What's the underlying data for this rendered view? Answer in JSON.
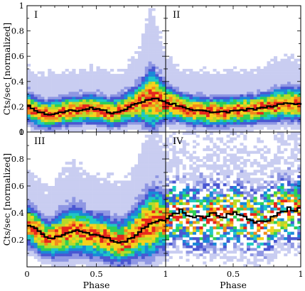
{
  "chart_data": {
    "type": "heatmap",
    "xlabel": "Phase",
    "ylabel": "Cts/sec [normalized]",
    "xlim": [
      0,
      1
    ],
    "ylim": [
      0,
      1
    ],
    "bottom_x_ticks": [
      "0",
      "0.5",
      "1",
      "0.5",
      "1"
    ],
    "y_ticks_top": [
      "0",
      "0.2",
      "0.4",
      "0.6",
      "0.8",
      "1"
    ],
    "y_ticks_bottom": [
      "0.2",
      "0.4",
      "0.6",
      "0.8",
      "1"
    ],
    "grid": false,
    "colors": {
      "scale": [
        "#eef0fb",
        "#c9cdf1",
        "#8f97e3",
        "#4a57d2",
        "#1a88d8",
        "#1ec7c4",
        "#2fcf55",
        "#b4db2a",
        "#f5d21d",
        "#f28a1c",
        "#e6261c"
      ],
      "curve": "#000000"
    },
    "panels": [
      {
        "label": "I",
        "x": [
          0.0,
          0.05,
          0.1,
          0.15,
          0.2,
          0.25,
          0.3,
          0.35,
          0.4,
          0.45,
          0.5,
          0.55,
          0.6,
          0.65,
          0.7,
          0.75,
          0.8,
          0.85,
          0.9,
          0.95,
          1.0
        ],
        "mean": [
          0.21,
          0.17,
          0.15,
          0.14,
          0.15,
          0.16,
          0.17,
          0.17,
          0.18,
          0.19,
          0.18,
          0.17,
          0.15,
          0.16,
          0.18,
          0.21,
          0.23,
          0.25,
          0.27,
          0.25,
          0.23
        ],
        "spread": [
          0.07,
          0.07,
          0.07,
          0.07,
          0.07,
          0.07,
          0.07,
          0.07,
          0.07,
          0.07,
          0.07,
          0.07,
          0.07,
          0.07,
          0.07,
          0.08,
          0.09,
          0.12,
          0.16,
          0.12,
          0.09
        ]
      },
      {
        "label": "II",
        "x": [
          0.0,
          0.05,
          0.1,
          0.15,
          0.2,
          0.25,
          0.3,
          0.35,
          0.4,
          0.45,
          0.5,
          0.55,
          0.6,
          0.65,
          0.7,
          0.75,
          0.8,
          0.85,
          0.9,
          0.95,
          1.0
        ],
        "mean": [
          0.23,
          0.22,
          0.2,
          0.18,
          0.17,
          0.17,
          0.16,
          0.16,
          0.16,
          0.16,
          0.17,
          0.17,
          0.18,
          0.18,
          0.19,
          0.2,
          0.21,
          0.22,
          0.23,
          0.22,
          0.22
        ],
        "spread": [
          0.08,
          0.08,
          0.07,
          0.07,
          0.07,
          0.07,
          0.07,
          0.07,
          0.07,
          0.07,
          0.07,
          0.07,
          0.07,
          0.07,
          0.07,
          0.07,
          0.08,
          0.08,
          0.08,
          0.08,
          0.08
        ]
      },
      {
        "label": "III",
        "x": [
          0.0,
          0.05,
          0.1,
          0.15,
          0.2,
          0.25,
          0.3,
          0.35,
          0.4,
          0.45,
          0.5,
          0.55,
          0.6,
          0.65,
          0.7,
          0.75,
          0.8,
          0.85,
          0.9,
          0.95,
          1.0
        ],
        "mean": [
          0.31,
          0.29,
          0.24,
          0.21,
          0.22,
          0.24,
          0.26,
          0.27,
          0.26,
          0.24,
          0.23,
          0.22,
          0.2,
          0.18,
          0.19,
          0.22,
          0.26,
          0.3,
          0.33,
          0.35,
          0.33
        ],
        "spread": [
          0.09,
          0.09,
          0.09,
          0.08,
          0.09,
          0.1,
          0.11,
          0.11,
          0.1,
          0.1,
          0.1,
          0.1,
          0.1,
          0.1,
          0.1,
          0.11,
          0.12,
          0.14,
          0.16,
          0.14,
          0.12
        ]
      },
      {
        "label": "IV",
        "x": [
          0.0,
          0.05,
          0.1,
          0.15,
          0.2,
          0.25,
          0.3,
          0.35,
          0.4,
          0.45,
          0.5,
          0.55,
          0.6,
          0.65,
          0.7,
          0.75,
          0.8,
          0.85,
          0.9,
          0.95,
          1.0
        ],
        "mean": [
          0.37,
          0.4,
          0.42,
          0.38,
          0.36,
          0.37,
          0.38,
          0.39,
          0.37,
          0.38,
          0.4,
          0.38,
          0.35,
          0.34,
          0.33,
          0.35,
          0.39,
          0.42,
          0.43,
          0.42,
          0.43
        ],
        "spread": [
          0.14,
          0.14,
          0.14,
          0.14,
          0.14,
          0.14,
          0.14,
          0.14,
          0.14,
          0.14,
          0.14,
          0.14,
          0.14,
          0.14,
          0.14,
          0.14,
          0.14,
          0.14,
          0.14,
          0.14,
          0.14
        ]
      }
    ]
  }
}
